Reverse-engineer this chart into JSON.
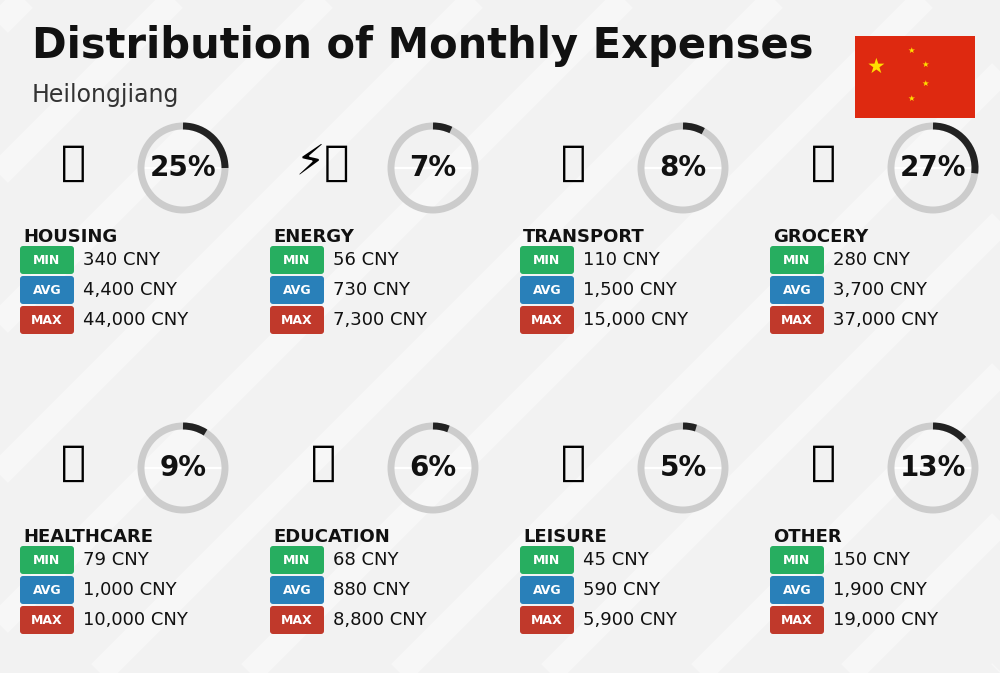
{
  "title": "Distribution of Monthly Expenses",
  "subtitle": "Heilongjiang",
  "background_color": "#f2f2f2",
  "categories": [
    {
      "name": "HOUSING",
      "percent": 25,
      "min_val": "340 CNY",
      "avg_val": "4,400 CNY",
      "max_val": "44,000 CNY",
      "row": 0,
      "col": 0
    },
    {
      "name": "ENERGY",
      "percent": 7,
      "min_val": "56 CNY",
      "avg_val": "730 CNY",
      "max_val": "7,300 CNY",
      "row": 0,
      "col": 1
    },
    {
      "name": "TRANSPORT",
      "percent": 8,
      "min_val": "110 CNY",
      "avg_val": "1,500 CNY",
      "max_val": "15,000 CNY",
      "row": 0,
      "col": 2
    },
    {
      "name": "GROCERY",
      "percent": 27,
      "min_val": "280 CNY",
      "avg_val": "3,700 CNY",
      "max_val": "37,000 CNY",
      "row": 0,
      "col": 3
    },
    {
      "name": "HEALTHCARE",
      "percent": 9,
      "min_val": "79 CNY",
      "avg_val": "1,000 CNY",
      "max_val": "10,000 CNY",
      "row": 1,
      "col": 0
    },
    {
      "name": "EDUCATION",
      "percent": 6,
      "min_val": "68 CNY",
      "avg_val": "880 CNY",
      "max_val": "8,800 CNY",
      "row": 1,
      "col": 1
    },
    {
      "name": "LEISURE",
      "percent": 5,
      "min_val": "45 CNY",
      "avg_val": "590 CNY",
      "max_val": "5,900 CNY",
      "row": 1,
      "col": 2
    },
    {
      "name": "OTHER",
      "percent": 13,
      "min_val": "150 CNY",
      "avg_val": "1,900 CNY",
      "max_val": "19,000 CNY",
      "row": 1,
      "col": 3
    }
  ],
  "min_color": "#27ae60",
  "avg_color": "#2980b9",
  "max_color": "#c0392b",
  "arc_dark": "#222222",
  "arc_light": "#cccccc",
  "title_fontsize": 30,
  "subtitle_fontsize": 17,
  "cat_fontsize": 13,
  "val_fontsize": 13,
  "pct_fontsize": 20,
  "badge_label_fontsize": 9
}
